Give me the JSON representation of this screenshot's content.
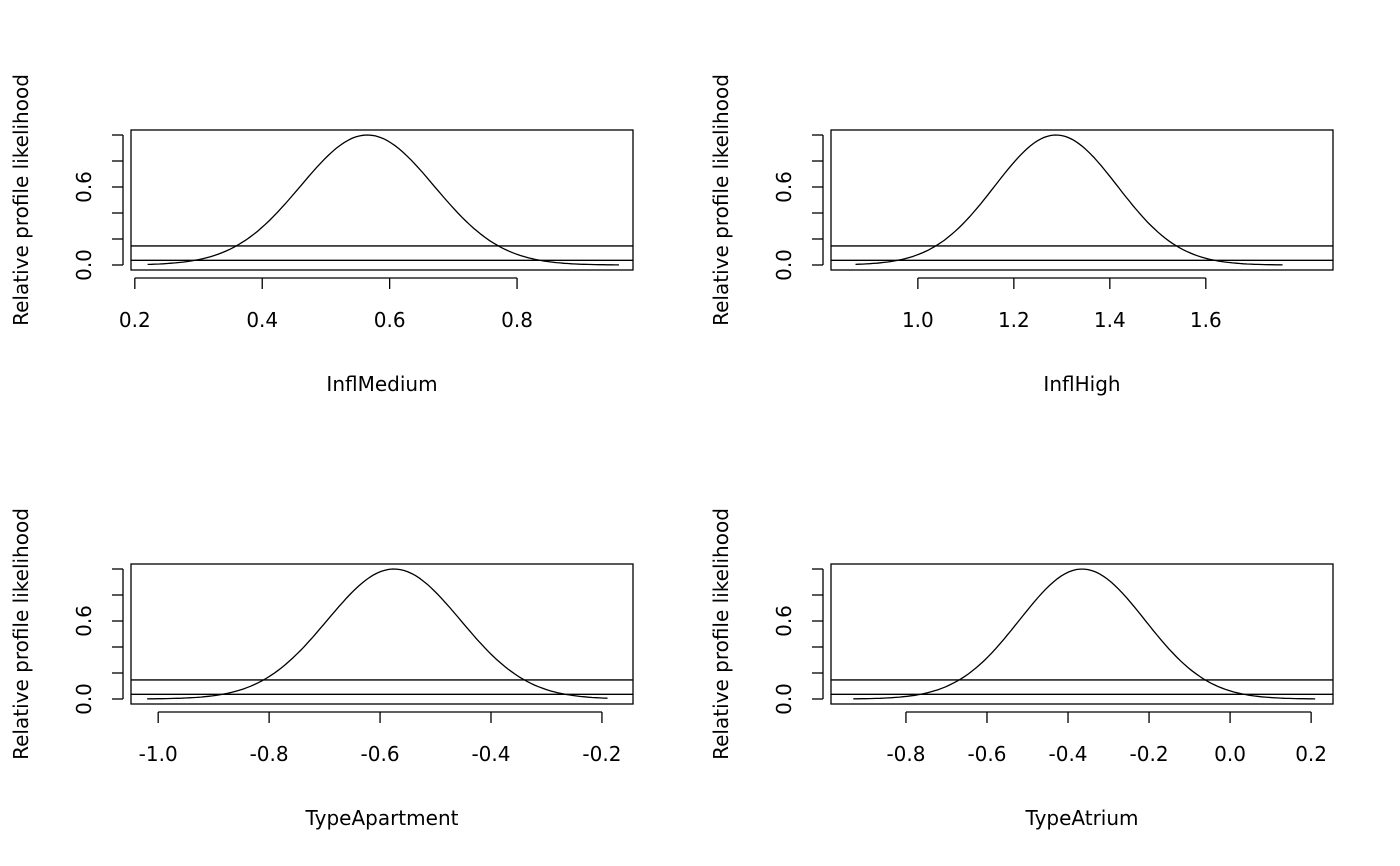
{
  "chart_data": [
    {
      "type": "line",
      "xlabel": "InflMedium",
      "ylabel": "Relative profile likelihood",
      "xlim": [
        0.194,
        0.982
      ],
      "ylim": [
        -0.0385,
        1.0385
      ],
      "x_ticks": [
        0.2,
        0.4,
        0.6,
        0.8
      ],
      "x_tick_labels": [
        "0.2",
        "0.4",
        "0.6",
        "0.8"
      ],
      "y_ticks": [
        0,
        0.2,
        0.4,
        0.6,
        0.8,
        1.0
      ],
      "y_tick_labels": [
        "0.0",
        "",
        "",
        "0.6",
        "",
        ""
      ],
      "curve": {
        "mode": 0.565,
        "sd": 0.105,
        "x_range": [
          0.22,
          0.96
        ]
      },
      "hlines": [
        0.1465,
        0.0362
      ]
    },
    {
      "type": "line",
      "xlabel": "InflHigh",
      "ylabel": "Relative profile likelihood",
      "xlim": [
        0.819,
        1.865
      ],
      "ylim": [
        -0.0385,
        1.0385
      ],
      "x_ticks": [
        1.0,
        1.2,
        1.4,
        1.6
      ],
      "x_tick_labels": [
        "1.0",
        "1.2",
        "1.4",
        "1.6"
      ],
      "y_ticks": [
        0,
        0.2,
        0.4,
        0.6,
        0.8,
        1.0
      ],
      "y_tick_labels": [
        "0.0",
        "",
        "",
        "0.6",
        "",
        ""
      ],
      "curve": {
        "mode": 1.288,
        "sd": 0.128,
        "x_range": [
          0.87,
          1.76
        ]
      },
      "hlines": [
        0.1465,
        0.0362
      ]
    },
    {
      "type": "line",
      "xlabel": "TypeApartment",
      "ylabel": "Relative profile likelihood",
      "xlim": [
        -1.049,
        -0.144
      ],
      "ylim": [
        -0.0385,
        1.0385
      ],
      "x_ticks": [
        -1.0,
        -0.8,
        -0.6,
        -0.4,
        -0.2
      ],
      "x_tick_labels": [
        "-1.0",
        "-0.8",
        "-0.6",
        "-0.4",
        "-0.2"
      ],
      "y_ticks": [
        0,
        0.2,
        0.4,
        0.6,
        0.8,
        1.0
      ],
      "y_tick_labels": [
        "0.0",
        "",
        "",
        "0.6",
        "",
        ""
      ],
      "curve": {
        "mode": -0.575,
        "sd": 0.12,
        "x_range": [
          -1.02,
          -0.19
        ]
      },
      "hlines": [
        0.1465,
        0.0362
      ]
    },
    {
      "type": "line",
      "xlabel": "TypeAtrium",
      "ylabel": "Relative profile likelihood",
      "xlim": [
        -0.985,
        0.254
      ],
      "ylim": [
        -0.0385,
        1.0385
      ],
      "x_ticks": [
        -0.8,
        -0.6,
        -0.4,
        -0.2,
        0.0,
        0.2
      ],
      "x_tick_labels": [
        "-0.8",
        "-0.6",
        "-0.4",
        "-0.2",
        "0.0",
        "0.2"
      ],
      "y_ticks": [
        0,
        0.2,
        0.4,
        0.6,
        0.8,
        1.0
      ],
      "y_tick_labels": [
        "0.0",
        "",
        "",
        "0.6",
        "",
        ""
      ],
      "curve": {
        "mode": -0.365,
        "sd": 0.155,
        "x_range": [
          -0.93,
          0.21
        ]
      },
      "hlines": [
        0.1465,
        0.0362
      ]
    }
  ]
}
